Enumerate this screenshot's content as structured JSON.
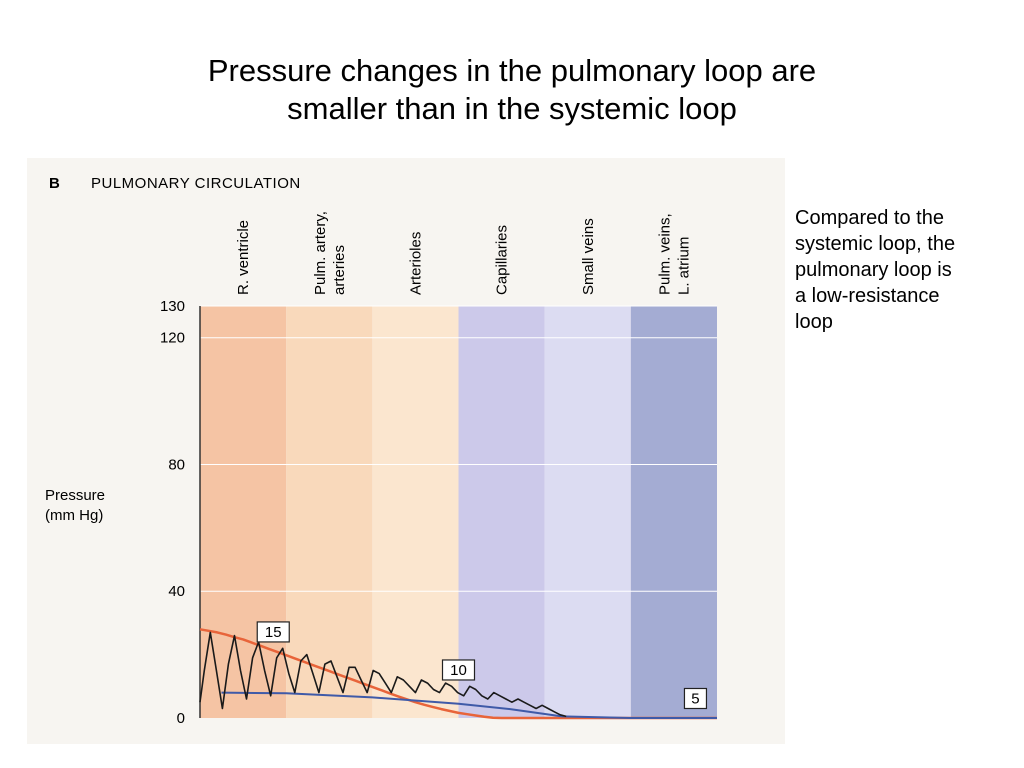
{
  "slide": {
    "title_line1": "Pressure changes in the pulmonary loop are",
    "title_line2": "smaller than in the systemic loop",
    "note": "Compared to the systemic loop, the pulmonary loop is a low-resistance loop"
  },
  "figure": {
    "panel_letter": "B",
    "heading": "PULMONARY CIRCULATION"
  },
  "colors": {
    "mean_line": "#e8643a",
    "pulse_line": "#1a1a1a",
    "baseline": "#3f5aa8"
  },
  "chart_data": {
    "type": "line",
    "title": "PULMONARY CIRCULATION",
    "ylabel_line1": "Pressure",
    "ylabel_line2": "(mm Hg)",
    "ylim": [
      0,
      130
    ],
    "yticks": [
      0,
      40,
      80,
      120,
      130
    ],
    "grid": true,
    "regions": [
      {
        "label_lines": [
          "R. ventricle"
        ],
        "color": "#f5c4a4"
      },
      {
        "label_lines": [
          "Pulm. artery,",
          "arteries"
        ],
        "color": "#f9d9bb"
      },
      {
        "label_lines": [
          "Arterioles"
        ],
        "color": "#fbe6cf"
      },
      {
        "label_lines": [
          "Capillaries"
        ],
        "color": "#ccc9ea"
      },
      {
        "label_lines": [
          "Small veins"
        ],
        "color": "#dcdcf2"
      },
      {
        "label_lines": [
          "Pulm. veins,",
          "L. atrium"
        ],
        "color": "#a4acd3"
      }
    ],
    "series": [
      {
        "x": [
          0,
          0.1,
          0.2,
          0.3,
          0.4,
          0.5,
          0.6,
          0.7,
          0.8,
          0.9,
          1.0,
          1.1,
          1.2,
          1.3,
          1.4,
          1.5,
          1.6,
          1.7,
          1.8,
          1.9,
          2.0,
          2.1,
          2.2,
          2.3,
          2.4,
          2.5,
          2.6,
          2.7,
          2.8,
          2.9,
          3.0,
          3.1,
          3.2,
          3.3,
          3.4,
          3.5,
          3.6,
          3.7,
          3.8,
          3.9,
          4.0,
          4.1,
          4.2,
          4.3,
          4.4,
          4.5,
          4.6,
          4.7,
          4.8,
          4.9,
          5.0,
          5.1,
          5.2,
          5.3,
          5.4,
          5.5,
          5.6,
          5.7,
          5.8,
          5.9,
          6.0
        ],
        "y": [
          28,
          27.5,
          27,
          26.3,
          25.5,
          24.8,
          23.8,
          22.8,
          21.8,
          20.8,
          19.8,
          18.8,
          17.8,
          16.8,
          15.8,
          14.8,
          13.8,
          12.8,
          11.8,
          10.8,
          9.8,
          8.8,
          7.8,
          6.8,
          5.9,
          5,
          4.2,
          3.5,
          2.8,
          2.2,
          1.6,
          1.2,
          0.8,
          0.4,
          0.1,
          0,
          0,
          0,
          0,
          0,
          0,
          0,
          0,
          0,
          0,
          0,
          0,
          0,
          0,
          0,
          0,
          0,
          0,
          0,
          0,
          0,
          0,
          0,
          0,
          0,
          0
        ]
      },
      {
        "x": [
          0.25,
          1.0,
          2.0,
          3.0,
          3.6,
          4.2,
          5.0,
          6.0
        ],
        "y": [
          8,
          7.8,
          6.5,
          4.5,
          2.8,
          0.5,
          0,
          0
        ]
      },
      {
        "x": [
          0.0,
          0.05,
          0.12,
          0.19,
          0.26,
          0.33,
          0.4,
          0.47,
          0.54,
          0.61,
          0.68,
          0.75,
          0.82,
          0.89,
          0.96,
          1.03,
          1.1,
          1.17,
          1.24,
          1.31,
          1.38,
          1.45,
          1.52,
          1.59,
          1.66,
          1.73,
          1.8,
          1.87,
          1.94,
          2.01,
          2.08,
          2.15,
          2.22,
          2.29,
          2.36,
          2.43,
          2.5,
          2.57,
          2.64,
          2.71,
          2.78,
          2.85,
          2.92,
          2.99,
          3.06,
          3.13,
          3.2,
          3.27,
          3.34,
          3.41,
          3.48,
          3.55,
          3.62,
          3.69,
          3.76,
          3.83,
          3.9,
          3.97,
          4.04,
          4.11,
          4.18,
          4.25
        ],
        "y": [
          5,
          15,
          27,
          15,
          3,
          17,
          26,
          15,
          6,
          19,
          24,
          15,
          7,
          19,
          22,
          14,
          8,
          18,
          20,
          14,
          8,
          17,
          18,
          13,
          8,
          16,
          16,
          12,
          8,
          15,
          14,
          11,
          8,
          13,
          12,
          10,
          8,
          12,
          11,
          9,
          8,
          11,
          10,
          8,
          7,
          10,
          9,
          7,
          6,
          8,
          7,
          6,
          5,
          6,
          5,
          4,
          3,
          4,
          3,
          2,
          1,
          0.5
        ]
      }
    ],
    "annotations": [
      {
        "text": "15",
        "x": 0.85,
        "y": 24
      },
      {
        "text": "10",
        "x": 3.0,
        "y": 12
      },
      {
        "text": "5",
        "x": 5.75,
        "y": 3
      }
    ]
  }
}
